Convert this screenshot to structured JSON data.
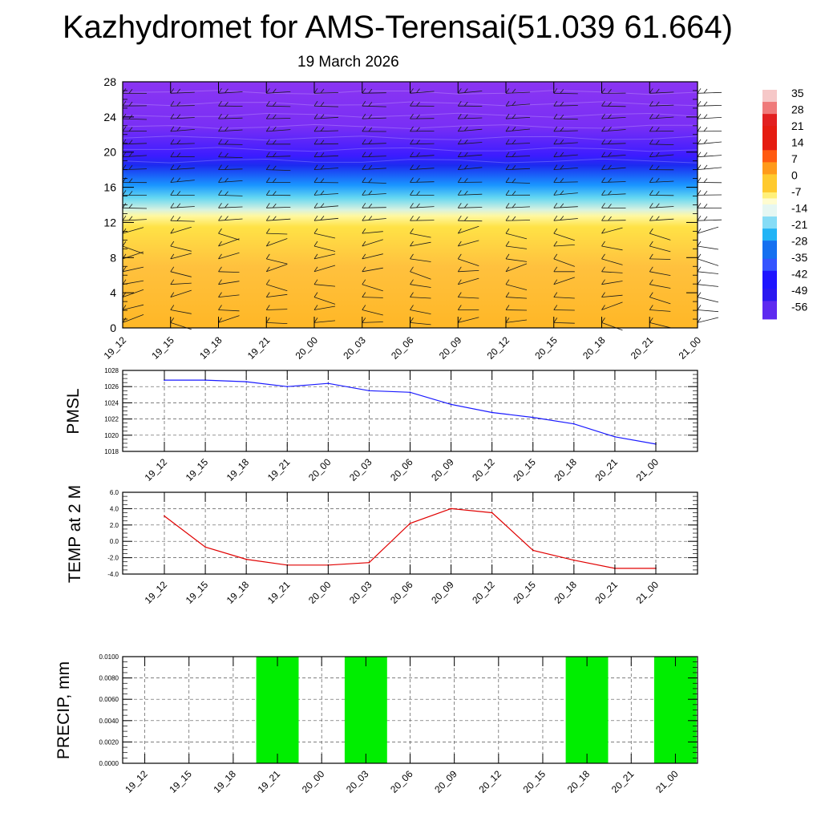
{
  "title": "Kazhydromet for AMS-Terensai(51.039 61.664)",
  "subtitle": "19 March 2026",
  "colorbar": {
    "labels": [
      "35",
      "28",
      "21",
      "14",
      "7",
      "0",
      "-7",
      "-14",
      "-21",
      "-28",
      "-35",
      "-42",
      "-49",
      "-56"
    ]
  },
  "chart_data": [
    {
      "type": "heatmap",
      "name": "vertical-profile",
      "x": [
        "19_12",
        "19_15",
        "19_18",
        "19_21",
        "20_00",
        "20_03",
        "20_06",
        "20_09",
        "20_12",
        "20_15",
        "20_18",
        "20_21",
        "21_00"
      ],
      "ylim": [
        0,
        28
      ],
      "yticks": [
        0,
        4,
        8,
        12,
        16,
        20,
        24,
        28
      ],
      "colorbar_range": [
        -60,
        38
      ],
      "bands": [
        {
          "from": 0,
          "to": 11.5,
          "value_range": [
            -10,
            -4
          ]
        },
        {
          "from": 11.5,
          "to": 17.5,
          "value_range": [
            -56,
            -14
          ]
        },
        {
          "from": 17.5,
          "to": 28,
          "value_range": [
            -60,
            -55
          ]
        }
      ],
      "annotation": "wind barbs"
    },
    {
      "type": "line",
      "name": "pmsl",
      "ylabel": "PMSL",
      "x": [
        "19_12",
        "19_15",
        "19_18",
        "19_21",
        "20_00",
        "20_03",
        "20_06",
        "20_09",
        "20_12",
        "20_15",
        "20_18",
        "20_21",
        "21_00"
      ],
      "values": [
        1026.8,
        1026.8,
        1026.6,
        1026.0,
        1026.4,
        1025.5,
        1025.3,
        1023.8,
        1022.8,
        1022.2,
        1021.4,
        1019.8,
        1018.9
      ],
      "ylim": [
        1018,
        1028
      ],
      "yticks": [
        1018,
        1020,
        1022,
        1024,
        1026,
        1028
      ],
      "color": "#1a1aff"
    },
    {
      "type": "line",
      "name": "temp2m",
      "ylabel": "TEMP at 2 M",
      "x": [
        "19_12",
        "19_15",
        "19_18",
        "19_21",
        "20_00",
        "20_03",
        "20_06",
        "20_09",
        "20_12",
        "20_15",
        "20_18",
        "20_21",
        "21_00"
      ],
      "values": [
        3.1,
        -0.7,
        -2.2,
        -2.9,
        -2.9,
        -2.6,
        2.2,
        4.0,
        3.5,
        -1.1,
        -2.3,
        -3.3,
        -3.3
      ],
      "ylim": [
        -4,
        6
      ],
      "yticks": [
        "6.0",
        "4.0",
        "2.0",
        "0.0",
        "-2.0",
        "-4.0"
      ],
      "color": "#e00000"
    },
    {
      "type": "bar",
      "name": "precip",
      "ylabel": "PRECIP, mm",
      "categories": [
        "19_12",
        "19_15",
        "19_18",
        "19_21",
        "20_00",
        "20_03",
        "20_06",
        "20_09",
        "20_12",
        "20_15",
        "20_18",
        "20_21",
        "21_00"
      ],
      "values": [
        0,
        0,
        0,
        0.01,
        0,
        0.01,
        0,
        0,
        0,
        0,
        0.01,
        0,
        0.01
      ],
      "ylim": [
        0,
        0.01
      ],
      "yticks": [
        "0.0100",
        "0.0080",
        "0.0060",
        "0.0040",
        "0.0020",
        "0.0000"
      ],
      "color": "#00ee00"
    }
  ]
}
